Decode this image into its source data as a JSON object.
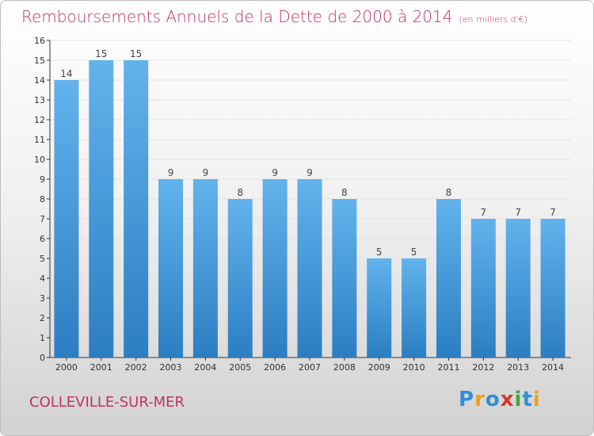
{
  "header": {
    "title": "Remboursements Annuels de la Dette de 2000 à 2014",
    "unit": "(en milliers d'€)"
  },
  "footer": {
    "commune": "COLLEVILLE-SUR-MER",
    "brand_logo": "Proxiti"
  },
  "colors": {
    "title": "#c0325f",
    "bar_top": "#62b3ec",
    "bar_bottom": "#2b7ec2",
    "axis": "#333333",
    "grid": "#e3e3e3"
  },
  "chart_data": {
    "type": "bar",
    "title": "Remboursements Annuels de la Dette de 2000 à 2014",
    "categories": [
      "2000",
      "2001",
      "2002",
      "2003",
      "2004",
      "2005",
      "2006",
      "2007",
      "2008",
      "2009",
      "2010",
      "2011",
      "2012",
      "2013",
      "2014"
    ],
    "values": [
      14,
      15,
      15,
      9,
      9,
      8,
      9,
      9,
      8,
      5,
      5,
      8,
      7,
      7,
      7
    ],
    "ylim": [
      0,
      16
    ],
    "yticks": [
      0,
      1,
      2,
      3,
      4,
      5,
      6,
      7,
      8,
      9,
      10,
      11,
      12,
      13,
      14,
      15,
      16
    ],
    "grid": true,
    "data_labels": true
  }
}
